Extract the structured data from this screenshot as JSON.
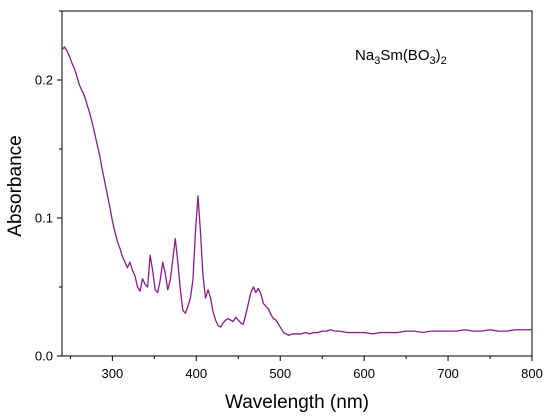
{
  "chart_data": {
    "type": "line",
    "title": "",
    "xlabel": "Wavelength (nm)",
    "ylabel": "Absorbance",
    "xlim": [
      240,
      800
    ],
    "ylim": [
      0,
      0.25
    ],
    "grid": false,
    "x_ticks": [
      300,
      400,
      500,
      600,
      700,
      800
    ],
    "x_tick_labels": [
      "300",
      "400",
      "500",
      "600",
      "700",
      "800"
    ],
    "y_ticks": [
      0.0,
      0.1,
      0.2
    ],
    "y_tick_labels": [
      "0.0",
      "0.1",
      "0.2"
    ],
    "annotation": {
      "parts": [
        {
          "text": "Na",
          "sub": false
        },
        {
          "text": "3",
          "sub": true
        },
        {
          "text": "Sm(BO",
          "sub": false
        },
        {
          "text": "3",
          "sub": true
        },
        {
          "text": ")",
          "sub": false
        },
        {
          "text": "2",
          "sub": true
        }
      ]
    },
    "series": [
      {
        "color": "#8B1A8B",
        "x": [
          240,
          243,
          246,
          249,
          252,
          255,
          258,
          261,
          264,
          267,
          270,
          273,
          276,
          279,
          282,
          285,
          288,
          291,
          294,
          297,
          300,
          303,
          306,
          309,
          312,
          315,
          318,
          321,
          324,
          327,
          330,
          333,
          336,
          339,
          342,
          345,
          348,
          351,
          354,
          357,
          360,
          363,
          366,
          369,
          372,
          375,
          378,
          381,
          384,
          387,
          390,
          393,
          396,
          399,
          402,
          405,
          408,
          411,
          414,
          417,
          420,
          423,
          426,
          429,
          432,
          435,
          438,
          441,
          444,
          447,
          450,
          453,
          456,
          459,
          462,
          465,
          468,
          471,
          474,
          477,
          480,
          483,
          486,
          489,
          492,
          495,
          498,
          501,
          504,
          507,
          510,
          515,
          520,
          525,
          530,
          535,
          540,
          545,
          550,
          555,
          560,
          565,
          570,
          580,
          590,
          600,
          610,
          620,
          630,
          640,
          650,
          660,
          670,
          680,
          690,
          700,
          710,
          720,
          730,
          740,
          750,
          760,
          770,
          780,
          790,
          800
        ],
        "y": [
          0.222,
          0.224,
          0.221,
          0.217,
          0.212,
          0.208,
          0.202,
          0.196,
          0.192,
          0.188,
          0.182,
          0.176,
          0.169,
          0.161,
          0.153,
          0.145,
          0.135,
          0.126,
          0.117,
          0.108,
          0.098,
          0.09,
          0.083,
          0.078,
          0.072,
          0.068,
          0.064,
          0.068,
          0.062,
          0.058,
          0.05,
          0.047,
          0.056,
          0.052,
          0.05,
          0.073,
          0.062,
          0.048,
          0.046,
          0.055,
          0.068,
          0.06,
          0.048,
          0.055,
          0.07,
          0.085,
          0.068,
          0.048,
          0.033,
          0.031,
          0.036,
          0.042,
          0.055,
          0.09,
          0.116,
          0.09,
          0.058,
          0.042,
          0.048,
          0.042,
          0.032,
          0.026,
          0.022,
          0.021,
          0.024,
          0.026,
          0.027,
          0.026,
          0.025,
          0.028,
          0.026,
          0.024,
          0.023,
          0.03,
          0.038,
          0.046,
          0.05,
          0.046,
          0.049,
          0.045,
          0.038,
          0.036,
          0.034,
          0.03,
          0.027,
          0.026,
          0.023,
          0.02,
          0.017,
          0.016,
          0.015,
          0.016,
          0.016,
          0.016,
          0.017,
          0.016,
          0.017,
          0.017,
          0.018,
          0.018,
          0.019,
          0.018,
          0.018,
          0.017,
          0.017,
          0.017,
          0.016,
          0.017,
          0.017,
          0.017,
          0.018,
          0.018,
          0.017,
          0.018,
          0.018,
          0.018,
          0.018,
          0.019,
          0.018,
          0.018,
          0.019,
          0.018,
          0.018,
          0.019,
          0.019,
          0.019
        ]
      }
    ]
  }
}
